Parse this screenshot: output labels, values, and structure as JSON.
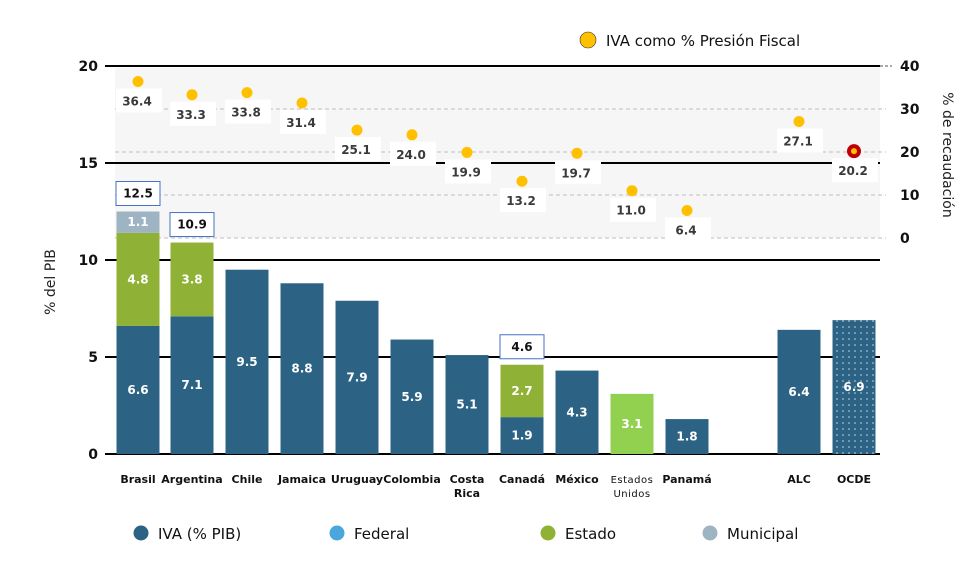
{
  "chart_data": {
    "type": "bar",
    "subtype": "stacked-bar-with-secondary-scatter",
    "categories": [
      "Brasil",
      "Argentina",
      "Chile",
      "Jamaica",
      "Uruguay",
      "Colombia",
      "Costa Rica",
      "Canadá",
      "México",
      "Estados Unidos",
      "Panamá",
      "ALC",
      "OCDE"
    ],
    "category_lines": [
      [
        "Brasil"
      ],
      [
        "Argentina"
      ],
      [
        "Chile"
      ],
      [
        "Jamaica"
      ],
      [
        "Uruguay"
      ],
      [
        "Colombia"
      ],
      [
        "Costa",
        "Rica"
      ],
      [
        "Canadá"
      ],
      [
        "México"
      ],
      [
        "Estados",
        "Unidos"
      ],
      [
        "Panamá"
      ],
      [
        "ALC"
      ],
      [
        "OCDE"
      ]
    ],
    "series": [
      {
        "name": "IVA (% PIB)",
        "color": "#2c6384",
        "values": [
          6.6,
          7.1,
          9.5,
          8.8,
          7.9,
          5.9,
          5.1,
          1.9,
          4.3,
          null,
          1.8,
          6.4,
          6.9
        ]
      },
      {
        "name": "Federal",
        "color": "#4aa6dc",
        "values": [
          null,
          null,
          null,
          null,
          null,
          null,
          null,
          null,
          null,
          null,
          null,
          null,
          null
        ]
      },
      {
        "name": "Estado",
        "color": "#8fb236",
        "values": [
          4.8,
          3.8,
          null,
          null,
          null,
          null,
          null,
          2.7,
          null,
          3.1,
          null,
          null,
          null
        ]
      },
      {
        "name": "Municipal",
        "color": "#9fb4c3",
        "values": [
          1.1,
          null,
          null,
          null,
          null,
          null,
          null,
          null,
          null,
          null,
          null,
          null,
          null
        ]
      }
    ],
    "special_colors": {
      "estados_unidos_estado": "#92d050",
      "ocde_pattern": "dotted"
    },
    "totals": [
      12.5,
      10.9,
      null,
      null,
      null,
      null,
      null,
      4.6,
      null,
      null,
      null,
      null,
      null
    ],
    "secondary_series": {
      "name": "IVA como % Presión Fiscal",
      "type": "scatter",
      "color": "#ffc000",
      "highlight_color": "#c00000",
      "highlight_category": "OCDE",
      "values": [
        36.4,
        33.3,
        33.8,
        31.4,
        25.1,
        24.0,
        19.9,
        13.2,
        19.7,
        11.0,
        6.4,
        27.1,
        20.2
      ],
      "axis": "right"
    },
    "ylabel": "% del PIB",
    "ylim": [
      0,
      20
    ],
    "yticks": [
      0,
      5,
      10,
      15,
      20
    ],
    "y2label": "% de recaudación",
    "y2lim": [
      0,
      40
    ],
    "y2ticks": [
      0,
      10,
      20,
      30,
      40
    ],
    "grid": true,
    "legend": {
      "position": "bottom",
      "entries": [
        "IVA (% PIB)",
        "Federal",
        "Estado",
        "Municipal"
      ]
    },
    "secondary_legend": {
      "position": "top-right",
      "entry": "IVA como % Presión Fiscal"
    },
    "title": ""
  }
}
